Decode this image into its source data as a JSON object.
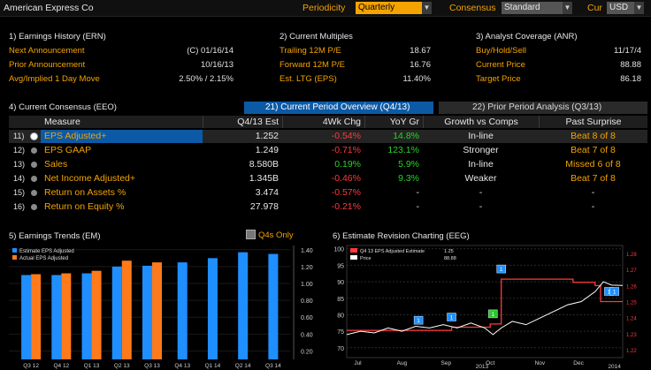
{
  "company": "American Express Co",
  "toolbar": {
    "periodicity_label": "Periodicity",
    "periodicity_value": "Quarterly",
    "consensus_label": "Consensus",
    "consensus_value": "Standard",
    "cur_label": "Cur",
    "cur_value": "USD"
  },
  "earnings_history": {
    "title": "1) Earnings History (ERN)",
    "rows": [
      {
        "label": "Next Announcement",
        "value": "(C)  01/16/14"
      },
      {
        "label": "Prior Announcement",
        "value": "10/16/13"
      },
      {
        "label": "Avg/Implied 1 Day Move",
        "value": "2.50% / 2.15%"
      }
    ]
  },
  "current_multiples": {
    "title": "2) Current Multiples",
    "rows": [
      {
        "label": "Trailing 12M P/E",
        "value": "18.67"
      },
      {
        "label": "Forward 12M P/E",
        "value": "16.76"
      },
      {
        "label": "Est. LTG (EPS)",
        "value": "11.40%"
      }
    ]
  },
  "analyst_coverage": {
    "title": "3) Analyst Coverage (ANR)",
    "rows": [
      {
        "label": "Buy/Hold/Sell",
        "value": "11/17/4"
      },
      {
        "label": "Current Price",
        "value": "88.88"
      },
      {
        "label": "Target Price",
        "value": "86.18"
      }
    ]
  },
  "consensus": {
    "title": "4) Current Consensus (EEO)",
    "tab_current": "21) Current Period Overview (Q4/13)",
    "tab_prior": "22) Prior Period Analysis (Q3/13)",
    "headers": [
      "Measure",
      "Q4/13 Est",
      "4Wk Chg",
      "YoY Gr",
      "Growth vs Comps",
      "Past Surprise"
    ],
    "rows": [
      {
        "num": "11)",
        "measure": "EPS Adjusted+",
        "est": "1.252",
        "chg": "-0.54%",
        "yoy": "14.8%",
        "growth": "In-line",
        "surprise": "Beat 8 of 8"
      },
      {
        "num": "12)",
        "measure": "EPS GAAP",
        "est": "1.249",
        "chg": "-0.71%",
        "yoy": "123.1%",
        "growth": "Stronger",
        "surprise": "Beat 7 of 8"
      },
      {
        "num": "13)",
        "measure": "Sales",
        "est": "8.580B",
        "chg": "0.19%",
        "yoy": "5.9%",
        "growth": "In-line",
        "surprise": "Missed 6 of 8"
      },
      {
        "num": "14)",
        "measure": "Net Income Adjusted+",
        "est": "1.345B",
        "chg": "-0.46%",
        "yoy": "9.3%",
        "growth": "Weaker",
        "surprise": "Beat 7 of 8"
      },
      {
        "num": "15)",
        "measure": "Return on Assets %",
        "est": "3.474",
        "chg": "-0.57%",
        "yoy": "-",
        "growth": "-",
        "surprise": "-"
      },
      {
        "num": "16)",
        "measure": "Return on Equity %",
        "est": "27.978",
        "chg": "-0.21%",
        "yoy": "-",
        "growth": "-",
        "surprise": "-"
      }
    ]
  },
  "trends": {
    "title": "5) Earnings Trends (EM)",
    "q4_only_label": "Q4s Only"
  },
  "revision": {
    "title": "6) Estimate Revision Charting (EEG)"
  },
  "chart_data": [
    {
      "type": "bar",
      "categories": [
        "Q3 12",
        "Q4 12",
        "Q1 13",
        "Q2 13",
        "Q3 13",
        "Q4 13",
        "Q1 14",
        "Q2 14",
        "Q3 14"
      ],
      "series": [
        {
          "name": "Estimate EPS Adjusted",
          "values": [
            1.1,
            1.1,
            1.12,
            1.2,
            1.21,
            1.25,
            1.3,
            1.37,
            1.35
          ],
          "color": "#1f8fff"
        },
        {
          "name": "Actual EPS Adjusted",
          "values": [
            1.11,
            1.12,
            1.15,
            1.27,
            1.25,
            null,
            null,
            null,
            null
          ],
          "color": "#ff7a1a"
        }
      ],
      "yticks": [
        "0.20",
        "0.40",
        "0.60",
        "0.80",
        "1.00",
        "1.20",
        "1.40"
      ],
      "ylim": [
        0.1,
        1.45
      ]
    },
    {
      "type": "line",
      "legend": [
        {
          "name": "Q4 13 EPS Adjusted Estimate",
          "value": "1.25",
          "color": "#ff3a3a"
        },
        {
          "name": "Price",
          "value": "88.88",
          "color": "#ffffff"
        }
      ],
      "x_labels": [
        "Jul",
        "Aug",
        "Sep",
        "2013",
        "Oct",
        "Nov",
        "Dec",
        "2014"
      ],
      "left_ticks": [
        "70",
        "75",
        "80",
        "85",
        "90",
        "95",
        "100"
      ],
      "right_ticks": [
        "1.22",
        "1.23",
        "1.24",
        "1.25",
        "1.26",
        "1.27",
        "1.28"
      ],
      "left_ylim": [
        67,
        101
      ],
      "right_ylim": [
        1.215,
        1.285
      ],
      "estimate_steps": [
        [
          0,
          1.232
        ],
        [
          0.35,
          1.232
        ],
        [
          0.38,
          1.234
        ],
        [
          0.52,
          1.236
        ],
        [
          0.56,
          1.264
        ],
        [
          0.78,
          1.264
        ],
        [
          0.82,
          1.262
        ],
        [
          0.9,
          1.26
        ],
        [
          0.92,
          1.25
        ],
        [
          1.0,
          1.25
        ]
      ],
      "price": [
        [
          0,
          74
        ],
        [
          0.05,
          75
        ],
        [
          0.1,
          74.5
        ],
        [
          0.15,
          76
        ],
        [
          0.2,
          75
        ],
        [
          0.25,
          76.5
        ],
        [
          0.3,
          76
        ],
        [
          0.35,
          77
        ],
        [
          0.4,
          76
        ],
        [
          0.45,
          77.5
        ],
        [
          0.5,
          76
        ],
        [
          0.53,
          74
        ],
        [
          0.56,
          76
        ],
        [
          0.6,
          78
        ],
        [
          0.65,
          77
        ],
        [
          0.7,
          79
        ],
        [
          0.75,
          81
        ],
        [
          0.8,
          83
        ],
        [
          0.85,
          84
        ],
        [
          0.9,
          87
        ],
        [
          0.93,
          90
        ],
        [
          0.96,
          89
        ],
        [
          1.0,
          88.88
        ]
      ],
      "markers": [
        {
          "x": 0.26,
          "label": "1",
          "color": "#1f8fff"
        },
        {
          "x": 0.38,
          "label": "1",
          "color": "#1f8fff"
        },
        {
          "x": 0.53,
          "label": "1",
          "color": "#2cc82c"
        },
        {
          "x": 0.56,
          "label": "1",
          "color": "#1f8fff"
        },
        {
          "x": 0.95,
          "label": "1",
          "color": "#1f8fff"
        },
        {
          "x": 0.97,
          "label": "1",
          "color": "#1f8fff"
        }
      ]
    }
  ]
}
